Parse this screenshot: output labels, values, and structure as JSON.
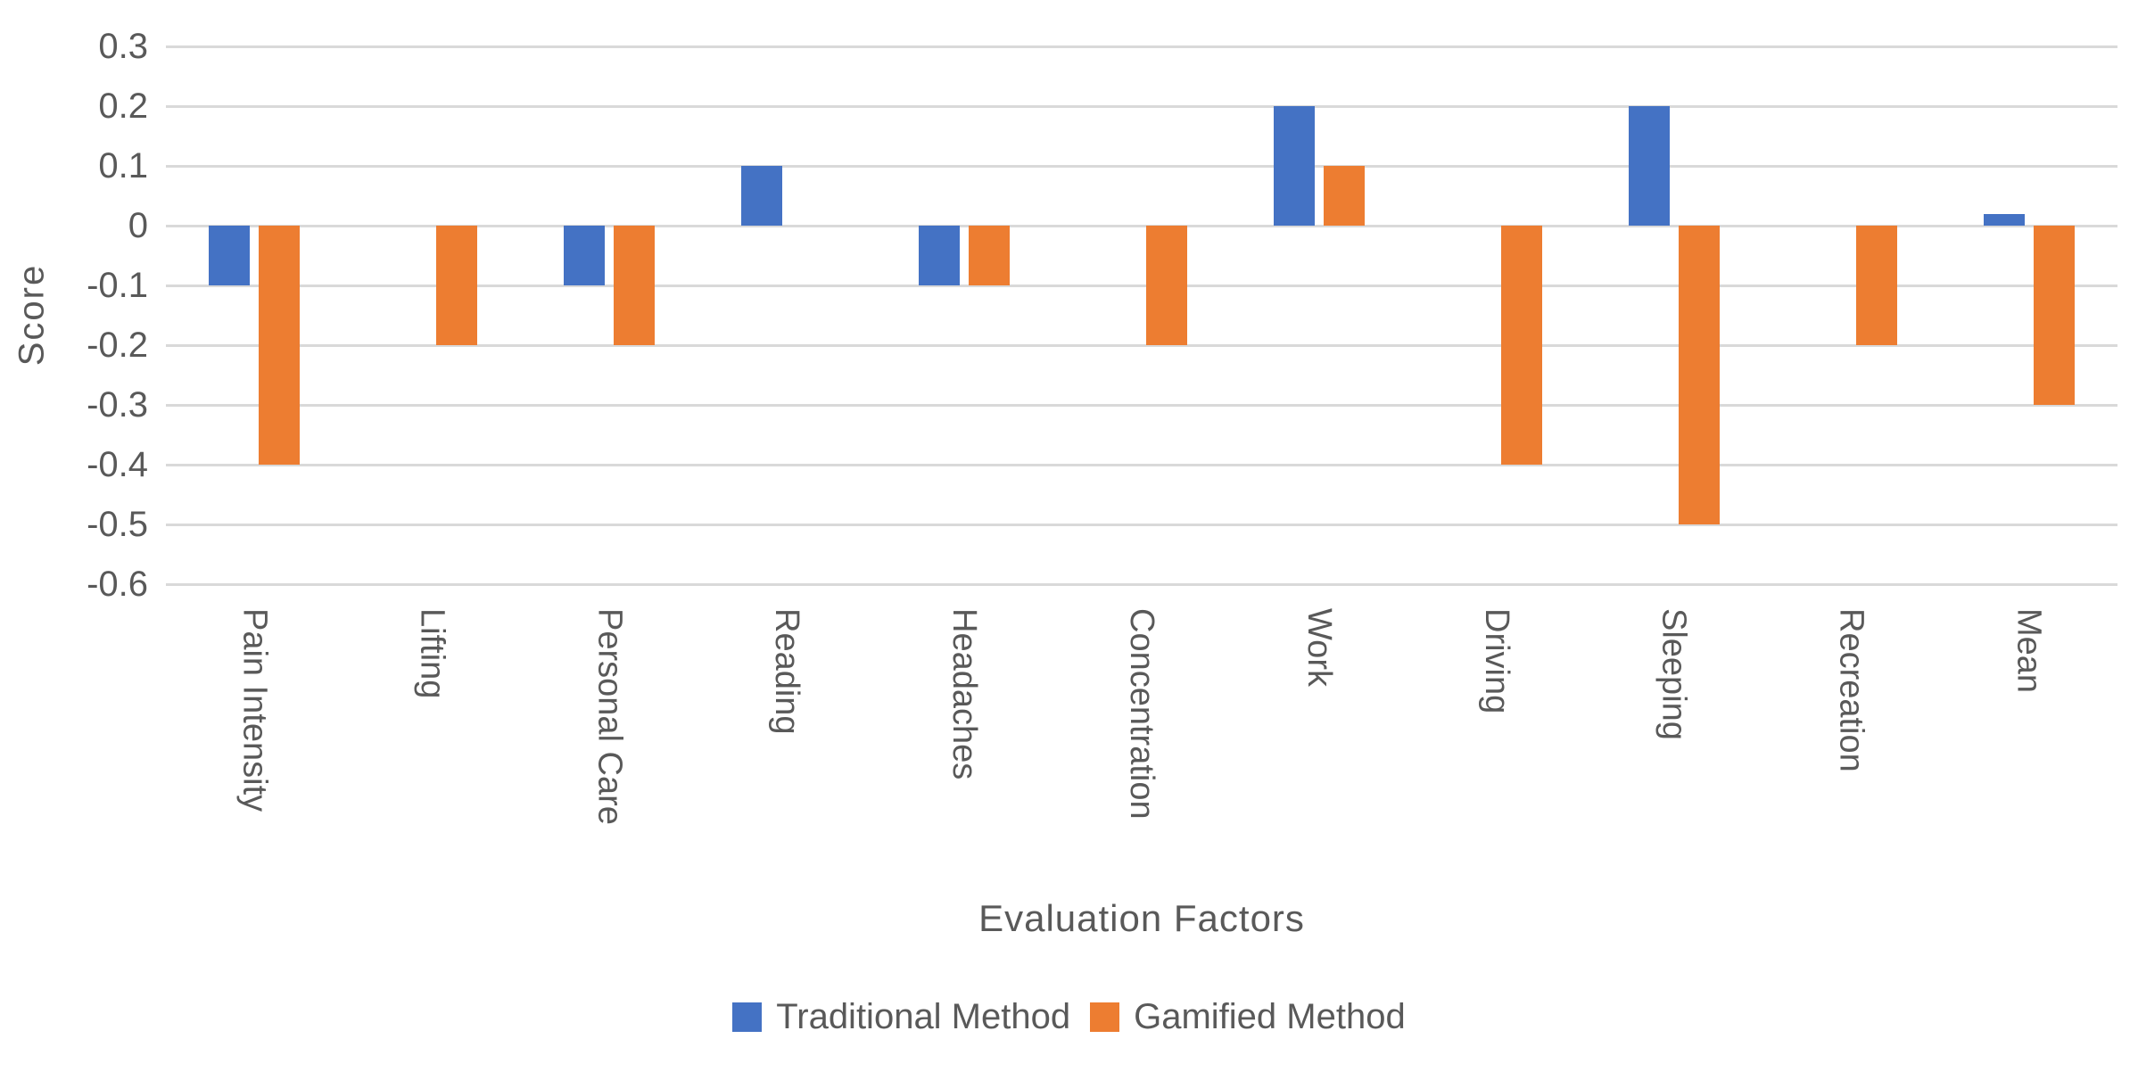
{
  "chart_data": {
    "type": "bar",
    "title": "",
    "categories": [
      "Pain Intensity",
      "Lifting",
      "Personal Care",
      "Reading",
      "Headaches",
      "Concentration",
      "Work",
      "Driving",
      "Sleeping",
      "Recreation",
      "Mean"
    ],
    "series": [
      {
        "name": "Traditional Method",
        "color": "#4472C4",
        "values": [
          -0.1,
          0,
          -0.1,
          0.1,
          -0.1,
          0,
          0.2,
          0,
          0.2,
          0,
          0.02
        ]
      },
      {
        "name": "Gamified Method",
        "color": "#ED7D31",
        "values": [
          -0.4,
          -0.2,
          -0.2,
          0,
          -0.1,
          -0.2,
          0.1,
          -0.4,
          -0.5,
          -0.2,
          -0.3
        ]
      }
    ],
    "xlabel": "Evaluation Factors",
    "ylabel": "Score",
    "ylim": [
      -0.6,
      0.3
    ],
    "yticks": [
      "0.3",
      "0.2",
      "0.1",
      "0",
      "-0.1",
      "-0.2",
      "-0.3",
      "-0.4",
      "-0.5",
      "-0.6"
    ],
    "grid": true,
    "legend_position": "bottom",
    "style": {
      "gridline_color": "#D9D9D9",
      "text_color": "#595959",
      "background": "#FFFFFF"
    }
  }
}
